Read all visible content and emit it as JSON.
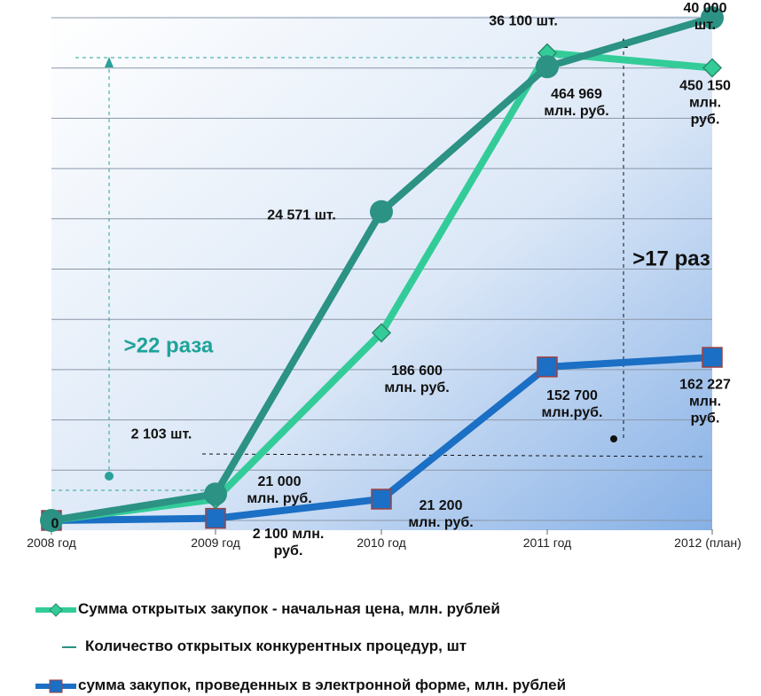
{
  "chart_data": {
    "type": "line",
    "categories": [
      "2008 год",
      "2009 год",
      "2010 год",
      "2011 год",
      "2012 (план)"
    ],
    "ylim": [
      0,
      500000
    ],
    "yticks": [
      0,
      50000,
      100000,
      150000,
      200000,
      250000,
      300000,
      350000,
      400000,
      450000,
      500000
    ],
    "y2lim": [
      0,
      40000
    ],
    "grid": true,
    "series": [
      {
        "name": "Сумма открытых закупок - начальная цена, млн. рублей",
        "color": "#33cc99",
        "marker": "diamond",
        "values": [
          0,
          21000,
          186600,
          464969,
          450150
        ],
        "value_labels": [
          "0",
          "21 000\nмлн. руб.",
          "186 600\nмлн. руб.",
          "464 969\nмлн. руб.",
          "450 150\nмлн. руб."
        ]
      },
      {
        "name": "Количество открытых конкурентных процедур, шт",
        "color": "#2b9284",
        "marker": "circle",
        "axis": "y2",
        "values": [
          0,
          2103,
          24571,
          36100,
          40000
        ],
        "value_labels": [
          null,
          "2 103 шт.",
          "24 571 шт.",
          "36 100 шт.",
          "40 000 шт."
        ]
      },
      {
        "name": "сумма закупок, проведенных в электронной форме, млн. рублей",
        "color": "#1b6fc4",
        "marker": "square",
        "values": [
          0,
          2100,
          21200,
          152700,
          162227
        ],
        "value_labels": [
          null,
          "2 100 млн.\nруб.",
          "21 200\nмлн. руб.",
          "152 700\nмлн.руб.",
          "162 227\nмлн. руб."
        ]
      }
    ],
    "annotations": [
      ">22 раза",
      ">17 раз"
    ]
  }
}
